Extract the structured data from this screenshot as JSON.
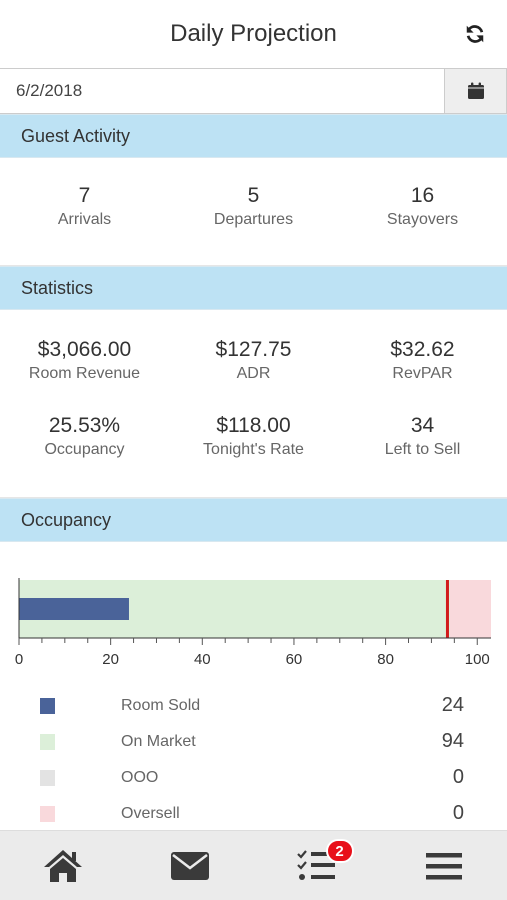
{
  "header": {
    "title": "Daily Projection",
    "refresh_icon": "refresh-icon"
  },
  "date": {
    "value": "6/2/2018",
    "calendar_icon": "calendar-icon"
  },
  "guest_activity": {
    "title": "Guest Activity",
    "items": [
      {
        "value": "7",
        "label": "Arrivals"
      },
      {
        "value": "5",
        "label": "Departures"
      },
      {
        "value": "16",
        "label": "Stayovers"
      }
    ]
  },
  "statistics": {
    "title": "Statistics",
    "items": [
      {
        "value": "$3,066.00",
        "label": "Room Revenue"
      },
      {
        "value": "$127.75",
        "label": "ADR"
      },
      {
        "value": "$32.62",
        "label": "RevPAR"
      },
      {
        "value": "25.53%",
        "label": "Occupancy"
      },
      {
        "value": "$118.00",
        "label": "Tonight's Rate"
      },
      {
        "value": "34",
        "label": "Left to Sell"
      }
    ]
  },
  "occupancy": {
    "title": "Occupancy",
    "legend": [
      {
        "label": "Room Sold",
        "value": "24",
        "color": "#4a6399"
      },
      {
        "label": "On Market",
        "value": "94",
        "color": "#dcefd9"
      },
      {
        "label": "OOO",
        "value": "0",
        "color": "#e3e3e3"
      },
      {
        "label": "Oversell",
        "value": "0",
        "color": "#f9d9dc"
      }
    ]
  },
  "chart_data": {
    "type": "bar",
    "orientation": "horizontal",
    "xlim": [
      0,
      103
    ],
    "ticks": [
      0,
      20,
      40,
      60,
      80,
      100
    ],
    "bars": [
      {
        "name": "Room Sold",
        "value": 24,
        "color": "#4a6399"
      },
      {
        "name": "On Market",
        "value": 94,
        "color": "#dcefd9"
      },
      {
        "name": "Oversell",
        "value": 103,
        "color": "#f9d9dc"
      }
    ],
    "marker": {
      "value": 93.5,
      "color": "#d21b1b"
    }
  },
  "nav": {
    "items": [
      {
        "name": "home",
        "icon": "home-icon"
      },
      {
        "name": "messages",
        "icon": "envelope-icon"
      },
      {
        "name": "tasks",
        "icon": "task-list-icon",
        "badge": "2"
      },
      {
        "name": "menu",
        "icon": "hamburger-menu-icon"
      }
    ]
  }
}
